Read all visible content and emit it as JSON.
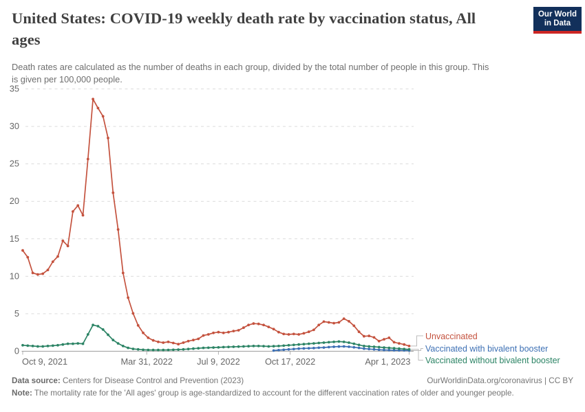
{
  "header": {
    "title_lines": [
      "United States: COVID-19 weekly death rate by vaccination status, All",
      "ages"
    ],
    "subtitle_lines": [
      "Death rates are calculated as the number of deaths in each group, divided by the total number of people in this group. This",
      "is given per 100,000 people."
    ],
    "logo_lines": [
      "Our World",
      "in Data"
    ],
    "logo_bg": "#12305b",
    "logo_accent": "#cd2624"
  },
  "chart_data": {
    "type": "line",
    "title": "United States: COVID-19 weekly death rate by vaccination status, All ages",
    "x_unit": "week",
    "x_ticks": [
      {
        "label": "Oct 9, 2021",
        "week": 0,
        "anchor": "start"
      },
      {
        "label": "Mar 31, 2022",
        "week": 24.71,
        "anchor": "middle"
      },
      {
        "label": "Jul 9, 2022",
        "week": 39,
        "anchor": "middle"
      },
      {
        "label": "Oct 17, 2022",
        "week": 53.29,
        "anchor": "middle"
      },
      {
        "label": "Apr 1, 2023",
        "week": 77,
        "anchor": "end"
      }
    ],
    "yticks": [
      0,
      5,
      10,
      15,
      20,
      25,
      30,
      35
    ],
    "ylim": [
      0,
      35
    ],
    "grid": true,
    "legend_position": "right",
    "series": [
      {
        "name": "Unvaccinated",
        "color": "#c4523e",
        "start_week": 0,
        "values": [
          13.4,
          12.5,
          10.4,
          10.2,
          10.3,
          10.8,
          11.9,
          12.6,
          14.7,
          14.0,
          18.6,
          19.4,
          18.1,
          25.6,
          33.6,
          32.4,
          31.3,
          28.4,
          21.1,
          16.2,
          10.4,
          7.1,
          5.0,
          3.4,
          2.4,
          1.75,
          1.4,
          1.2,
          1.1,
          1.2,
          1.05,
          0.9,
          1.1,
          1.3,
          1.45,
          1.6,
          2.05,
          2.2,
          2.4,
          2.5,
          2.4,
          2.5,
          2.65,
          2.75,
          3.1,
          3.45,
          3.65,
          3.6,
          3.45,
          3.2,
          2.9,
          2.5,
          2.25,
          2.2,
          2.25,
          2.2,
          2.35,
          2.55,
          2.8,
          3.45,
          3.9,
          3.8,
          3.7,
          3.8,
          4.3,
          3.95,
          3.35,
          2.55,
          1.95,
          2.0,
          1.8,
          1.3,
          1.55,
          1.75,
          1.15,
          1.0,
          0.85,
          0.65
        ]
      },
      {
        "name": "Vaccinated with bivalent booster",
        "color": "#3d70b4",
        "start_week": 50,
        "values": [
          0.05,
          0.1,
          0.15,
          0.2,
          0.25,
          0.3,
          0.33,
          0.35,
          0.38,
          0.42,
          0.45,
          0.5,
          0.55,
          0.58,
          0.6,
          0.55,
          0.48,
          0.4,
          0.3,
          0.25,
          0.2,
          0.15,
          0.12,
          0.1,
          0.08,
          0.07,
          0.06,
          0.05
        ]
      },
      {
        "name": "Vaccinated without bivalent booster",
        "color": "#2c8465",
        "start_week": 0,
        "values": [
          0.75,
          0.7,
          0.65,
          0.6,
          0.6,
          0.65,
          0.7,
          0.75,
          0.85,
          0.95,
          0.95,
          1.0,
          0.95,
          2.2,
          3.45,
          3.3,
          2.85,
          2.15,
          1.45,
          1.0,
          0.65,
          0.4,
          0.27,
          0.2,
          0.15,
          0.13,
          0.12,
          0.12,
          0.12,
          0.13,
          0.15,
          0.17,
          0.2,
          0.25,
          0.3,
          0.35,
          0.4,
          0.42,
          0.45,
          0.47,
          0.5,
          0.52,
          0.55,
          0.57,
          0.6,
          0.62,
          0.65,
          0.65,
          0.63,
          0.6,
          0.62,
          0.65,
          0.7,
          0.75,
          0.8,
          0.85,
          0.9,
          0.95,
          1.0,
          1.05,
          1.1,
          1.15,
          1.2,
          1.25,
          1.2,
          1.1,
          0.95,
          0.8,
          0.65,
          0.6,
          0.55,
          0.5,
          0.45,
          0.4,
          0.35,
          0.3,
          0.25,
          0.2
        ]
      }
    ]
  },
  "footer": {
    "source_label": "Data source:",
    "source_text": " Centers for Disease Control and Prevention (2023)",
    "rights_text": "OurWorldinData.org/coronavirus | CC BY",
    "note_label": "Note:",
    "note_text": " The mortality rate for the 'All ages' group is age-standardized to account for the different vaccination rates of older and younger people."
  }
}
